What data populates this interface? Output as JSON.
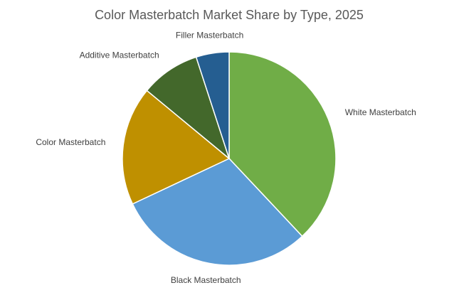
{
  "chart_data": {
    "type": "pie",
    "title": "Color Masterbatch Market Share by Type, 2025",
    "categories": [
      "White Masterbatch",
      "Black Masterbatch",
      "Color Masterbatch",
      "Additive Masterbatch",
      "Filler Masterbatch"
    ],
    "values": [
      38,
      30,
      18,
      9,
      5
    ],
    "colors": [
      "#70ad47",
      "#5b9bd5",
      "#bf9000",
      "#43682b",
      "#255e91"
    ]
  }
}
